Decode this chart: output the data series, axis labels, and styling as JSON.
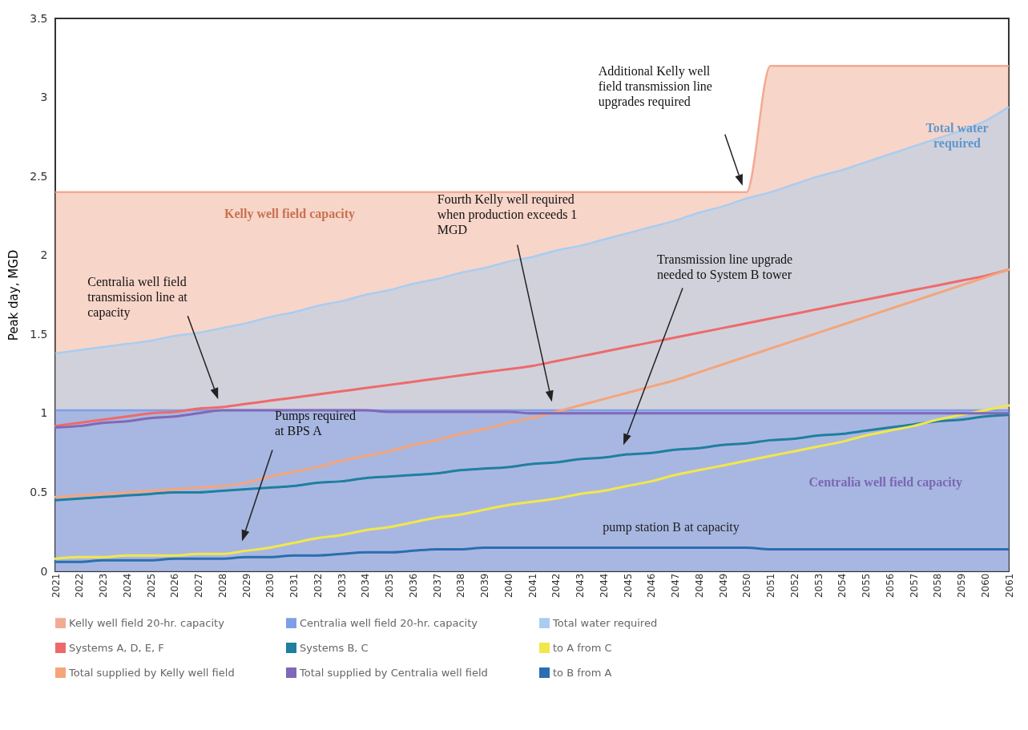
{
  "chart_data": {
    "type": "line",
    "ylabel": "Peak day, MGD",
    "categories": [
      "2021",
      "2022",
      "2023",
      "2024",
      "2025",
      "2026",
      "2027",
      "2028",
      "2029",
      "2030",
      "2031",
      "2032",
      "2033",
      "2034",
      "2035",
      "2036",
      "2037",
      "2038",
      "2039",
      "2040",
      "2041",
      "2042",
      "2043",
      "2044",
      "2045",
      "2046",
      "2047",
      "2048",
      "2049",
      "2050",
      "2051",
      "2052",
      "2053",
      "2054",
      "2055",
      "2056",
      "2057",
      "2058",
      "2059",
      "2060",
      "2061"
    ],
    "ylim": [
      0,
      3.5
    ],
    "yticks": [
      0,
      0.5,
      1,
      1.5,
      2,
      2.5,
      3,
      3.5
    ],
    "grid": false,
    "legend": "bottom",
    "series": [
      {
        "name": "Kelly well field 20-hr. capacity",
        "type": "area",
        "color": "#f2ab93",
        "values": [
          2.4,
          2.4,
          2.4,
          2.4,
          2.4,
          2.4,
          2.4,
          2.4,
          2.4,
          2.4,
          2.4,
          2.4,
          2.4,
          2.4,
          2.4,
          2.4,
          2.4,
          2.4,
          2.4,
          2.4,
          2.4,
          2.4,
          2.4,
          2.4,
          2.4,
          2.4,
          2.4,
          2.4,
          2.4,
          2.4,
          3.2,
          3.2,
          3.2,
          3.2,
          3.2,
          3.2,
          3.2,
          3.2,
          3.2,
          3.2,
          3.2
        ]
      },
      {
        "name": "Centralia well field 20-hr. capacity",
        "type": "area",
        "color": "#7f9ee6",
        "values": [
          1.02,
          1.02,
          1.02,
          1.02,
          1.02,
          1.02,
          1.02,
          1.02,
          1.02,
          1.02,
          1.02,
          1.02,
          1.02,
          1.02,
          1.02,
          1.02,
          1.02,
          1.02,
          1.02,
          1.02,
          1.02,
          1.02,
          1.02,
          1.02,
          1.02,
          1.02,
          1.02,
          1.02,
          1.02,
          1.02,
          1.02,
          1.02,
          1.02,
          1.02,
          1.02,
          1.02,
          1.02,
          1.02,
          1.02,
          1.02,
          1.02
        ]
      },
      {
        "name": "Total water required",
        "type": "area",
        "color": "#a9cdf0",
        "values": [
          1.38,
          1.4,
          1.42,
          1.44,
          1.46,
          1.49,
          1.51,
          1.54,
          1.57,
          1.61,
          1.64,
          1.68,
          1.71,
          1.75,
          1.78,
          1.82,
          1.85,
          1.89,
          1.92,
          1.96,
          1.99,
          2.03,
          2.06,
          2.1,
          2.14,
          2.18,
          2.22,
          2.27,
          2.31,
          2.36,
          2.4,
          2.45,
          2.5,
          2.54,
          2.59,
          2.64,
          2.69,
          2.74,
          2.79,
          2.85,
          2.94
        ]
      },
      {
        "name": "Systems A, D, E, F",
        "color": "#ee6a6a",
        "values": [
          0.92,
          0.94,
          0.96,
          0.98,
          1.0,
          1.01,
          1.03,
          1.04,
          1.06,
          1.08,
          1.1,
          1.12,
          1.14,
          1.16,
          1.18,
          1.2,
          1.22,
          1.24,
          1.26,
          1.28,
          1.3,
          1.33,
          1.36,
          1.39,
          1.42,
          1.45,
          1.48,
          1.51,
          1.54,
          1.57,
          1.6,
          1.63,
          1.66,
          1.69,
          1.72,
          1.75,
          1.78,
          1.81,
          1.84,
          1.87,
          1.91
        ]
      },
      {
        "name": "Systems B, C",
        "color": "#1f7f9f",
        "values": [
          0.45,
          0.46,
          0.47,
          0.48,
          0.49,
          0.5,
          0.5,
          0.51,
          0.52,
          0.53,
          0.54,
          0.56,
          0.57,
          0.59,
          0.6,
          0.61,
          0.62,
          0.64,
          0.65,
          0.66,
          0.68,
          0.69,
          0.71,
          0.72,
          0.74,
          0.75,
          0.77,
          0.78,
          0.8,
          0.81,
          0.83,
          0.84,
          0.86,
          0.87,
          0.89,
          0.91,
          0.93,
          0.95,
          0.96,
          0.98,
          0.99
        ]
      },
      {
        "name": "to A from C",
        "color": "#f2e74a",
        "values": [
          0.08,
          0.09,
          0.09,
          0.1,
          0.1,
          0.1,
          0.11,
          0.11,
          0.13,
          0.15,
          0.18,
          0.21,
          0.23,
          0.26,
          0.28,
          0.31,
          0.34,
          0.36,
          0.39,
          0.42,
          0.44,
          0.46,
          0.49,
          0.51,
          0.54,
          0.57,
          0.61,
          0.64,
          0.67,
          0.7,
          0.73,
          0.76,
          0.79,
          0.82,
          0.86,
          0.89,
          0.92,
          0.96,
          0.99,
          1.02,
          1.05
        ]
      },
      {
        "name": "Total supplied by Kelly well field",
        "color": "#f4a57c",
        "values": [
          0.47,
          0.48,
          0.49,
          0.5,
          0.51,
          0.52,
          0.53,
          0.54,
          0.56,
          0.6,
          0.63,
          0.66,
          0.7,
          0.73,
          0.76,
          0.8,
          0.83,
          0.87,
          0.9,
          0.94,
          0.97,
          1.01,
          1.05,
          1.09,
          1.13,
          1.17,
          1.21,
          1.26,
          1.31,
          1.36,
          1.41,
          1.46,
          1.51,
          1.56,
          1.61,
          1.66,
          1.71,
          1.76,
          1.81,
          1.86,
          1.91
        ]
      },
      {
        "name": "Total supplied by Centralia well field",
        "color": "#8068b8",
        "values": [
          0.91,
          0.92,
          0.94,
          0.95,
          0.97,
          0.98,
          1.0,
          1.02,
          1.02,
          1.02,
          1.02,
          1.02,
          1.02,
          1.02,
          1.01,
          1.01,
          1.01,
          1.01,
          1.01,
          1.01,
          1.0,
          1.0,
          1.0,
          1.0,
          1.0,
          1.0,
          1.0,
          1.0,
          1.0,
          1.0,
          1.0,
          1.0,
          1.0,
          1.0,
          1.0,
          1.0,
          1.0,
          1.0,
          1.0,
          1.0,
          1.0
        ]
      },
      {
        "name": "to B from A",
        "color": "#2a6eb0",
        "values": [
          0.06,
          0.06,
          0.07,
          0.07,
          0.07,
          0.08,
          0.08,
          0.08,
          0.09,
          0.09,
          0.1,
          0.1,
          0.11,
          0.12,
          0.12,
          0.13,
          0.14,
          0.14,
          0.15,
          0.15,
          0.15,
          0.15,
          0.15,
          0.15,
          0.15,
          0.15,
          0.15,
          0.15,
          0.15,
          0.15,
          0.14,
          0.14,
          0.14,
          0.14,
          0.14,
          0.14,
          0.14,
          0.14,
          0.14,
          0.14,
          0.14
        ]
      }
    ],
    "annotations": [
      "Kelly well field capacity",
      "Centralia well field capacity",
      "Total water required",
      "Centralia well field transmission line at capacity",
      "Fourth Kelly well required when production exceeds 1 MGD",
      "Transmission line upgrade needed to System B tower",
      "Additional Kelly well field transmission line upgrades required",
      "Pumps required at BPS A",
      "pump station B at capacity"
    ]
  }
}
